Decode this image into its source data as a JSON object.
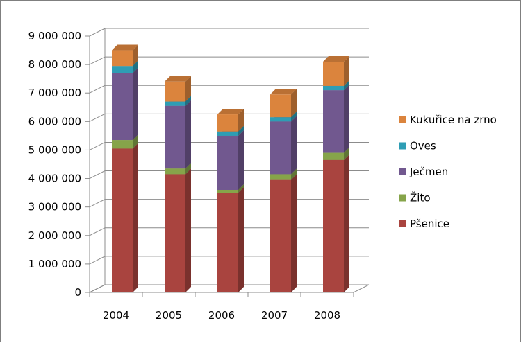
{
  "chart_data": {
    "type": "bar",
    "stacked": true,
    "three_d": true,
    "categories": [
      "2004",
      "2005",
      "2006",
      "2007",
      "2008"
    ],
    "series": [
      {
        "name": "Pšenice",
        "color": "#A9443F",
        "values": [
          5050000,
          4150000,
          3500000,
          3950000,
          4650000
        ]
      },
      {
        "name": "Žito",
        "color": "#86A44A",
        "values": [
          300000,
          200000,
          100000,
          200000,
          250000
        ]
      },
      {
        "name": "Ječmen",
        "color": "#71588F",
        "values": [
          2350000,
          2200000,
          1900000,
          1850000,
          2200000
        ]
      },
      {
        "name": "Oves",
        "color": "#2E9DB4",
        "values": [
          250000,
          150000,
          150000,
          150000,
          150000
        ]
      },
      {
        "name": "Kukuřice na zrno",
        "color": "#DB843D",
        "values": [
          550000,
          700000,
          600000,
          800000,
          850000
        ]
      }
    ],
    "ylim": [
      0,
      9000000
    ],
    "yticks": [
      {
        "value": 0,
        "label": "0"
      },
      {
        "value": 1000000,
        "label": "1 000 000"
      },
      {
        "value": 2000000,
        "label": "2 000 000"
      },
      {
        "value": 3000000,
        "label": "3 000 000"
      },
      {
        "value": 4000000,
        "label": "4 000 000"
      },
      {
        "value": 5000000,
        "label": "5 000 000"
      },
      {
        "value": 6000000,
        "label": "6 000 000"
      },
      {
        "value": 7000000,
        "label": "7 000 000"
      },
      {
        "value": 8000000,
        "label": "8 000 000"
      },
      {
        "value": 9000000,
        "label": "9 000 000"
      }
    ],
    "grid": true,
    "legend_position": "right",
    "legend_order": [
      "Kukuřice na zrno",
      "Oves",
      "Ječmen",
      "Žito",
      "Pšenice"
    ],
    "title": "",
    "xlabel": "",
    "ylabel": ""
  }
}
